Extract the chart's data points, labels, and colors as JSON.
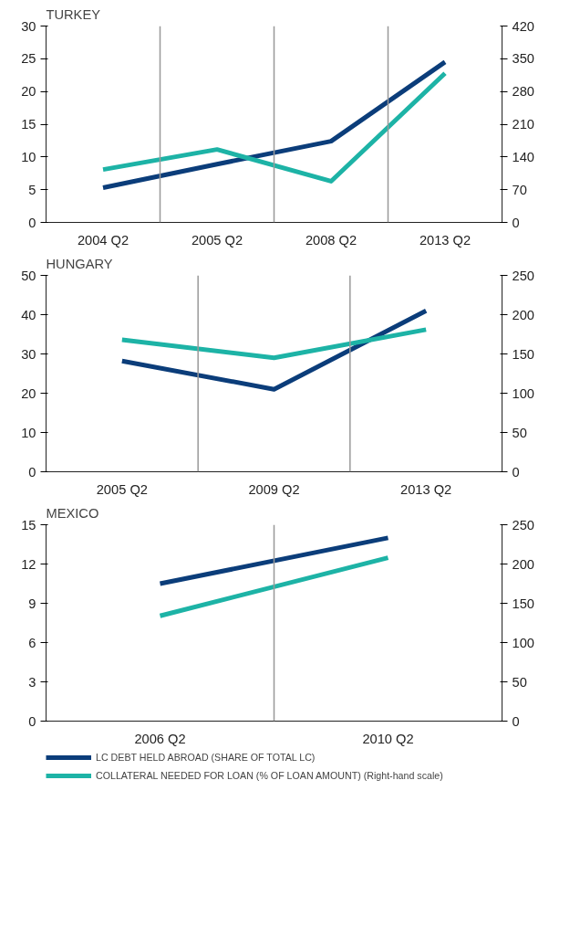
{
  "chart_data": [
    {
      "type": "line",
      "title": "TURKEY",
      "categories": [
        "2004 Q2",
        "2005 Q2",
        "2008 Q2",
        "2013 Q2"
      ],
      "ylim": [
        0,
        30
      ],
      "yticks": [
        0,
        5,
        10,
        15,
        20,
        25,
        30
      ],
      "y2lim": [
        0,
        420
      ],
      "y2ticks": [
        0,
        70,
        140,
        210,
        280,
        350,
        420
      ],
      "grid": "x",
      "series": [
        {
          "color": "#0b3d7a",
          "values": [
            5.3,
            8.9,
            12.4,
            24.5
          ]
        },
        {
          "color": "#1db3a6",
          "axis": "y2",
          "values": [
            113,
            156,
            88,
            319
          ]
        }
      ]
    },
    {
      "type": "line",
      "title": "HUNGARY",
      "categories": [
        "2005 Q2",
        "2009 Q2",
        "2013 Q2"
      ],
      "ylim": [
        0,
        50
      ],
      "yticks": [
        0,
        10,
        20,
        30,
        40,
        50
      ],
      "y2lim": [
        0,
        250
      ],
      "y2ticks": [
        0,
        50,
        100,
        150,
        200,
        250
      ],
      "grid": "x",
      "series": [
        {
          "color": "#0b3d7a",
          "values": [
            28.2,
            21,
            41
          ]
        },
        {
          "color": "#1db3a6",
          "axis": "y2",
          "values": [
            168,
            145,
            181
          ]
        }
      ]
    },
    {
      "type": "line",
      "title": "MEXICO",
      "categories": [
        "2006 Q2",
        "2010 Q2"
      ],
      "ylim": [
        0,
        15
      ],
      "yticks": [
        0,
        3,
        6,
        9,
        12,
        15
      ],
      "y2lim": [
        0,
        250
      ],
      "y2ticks": [
        0,
        50,
        100,
        150,
        200,
        250
      ],
      "grid": "x",
      "legend": "bottom",
      "series": [
        {
          "name": "LC DEBT HELD ABROAD (SHARE OF TOTAL LC)",
          "color": "#0b3d7a",
          "values": [
            10.5,
            14
          ]
        },
        {
          "name": "COLLATERAL NEEDED FOR LOAN (% OF LOAN AMOUNT) (Right-hand scale)",
          "color": "#1db3a6",
          "axis": "y2",
          "values": [
            134,
            208
          ]
        }
      ]
    }
  ]
}
